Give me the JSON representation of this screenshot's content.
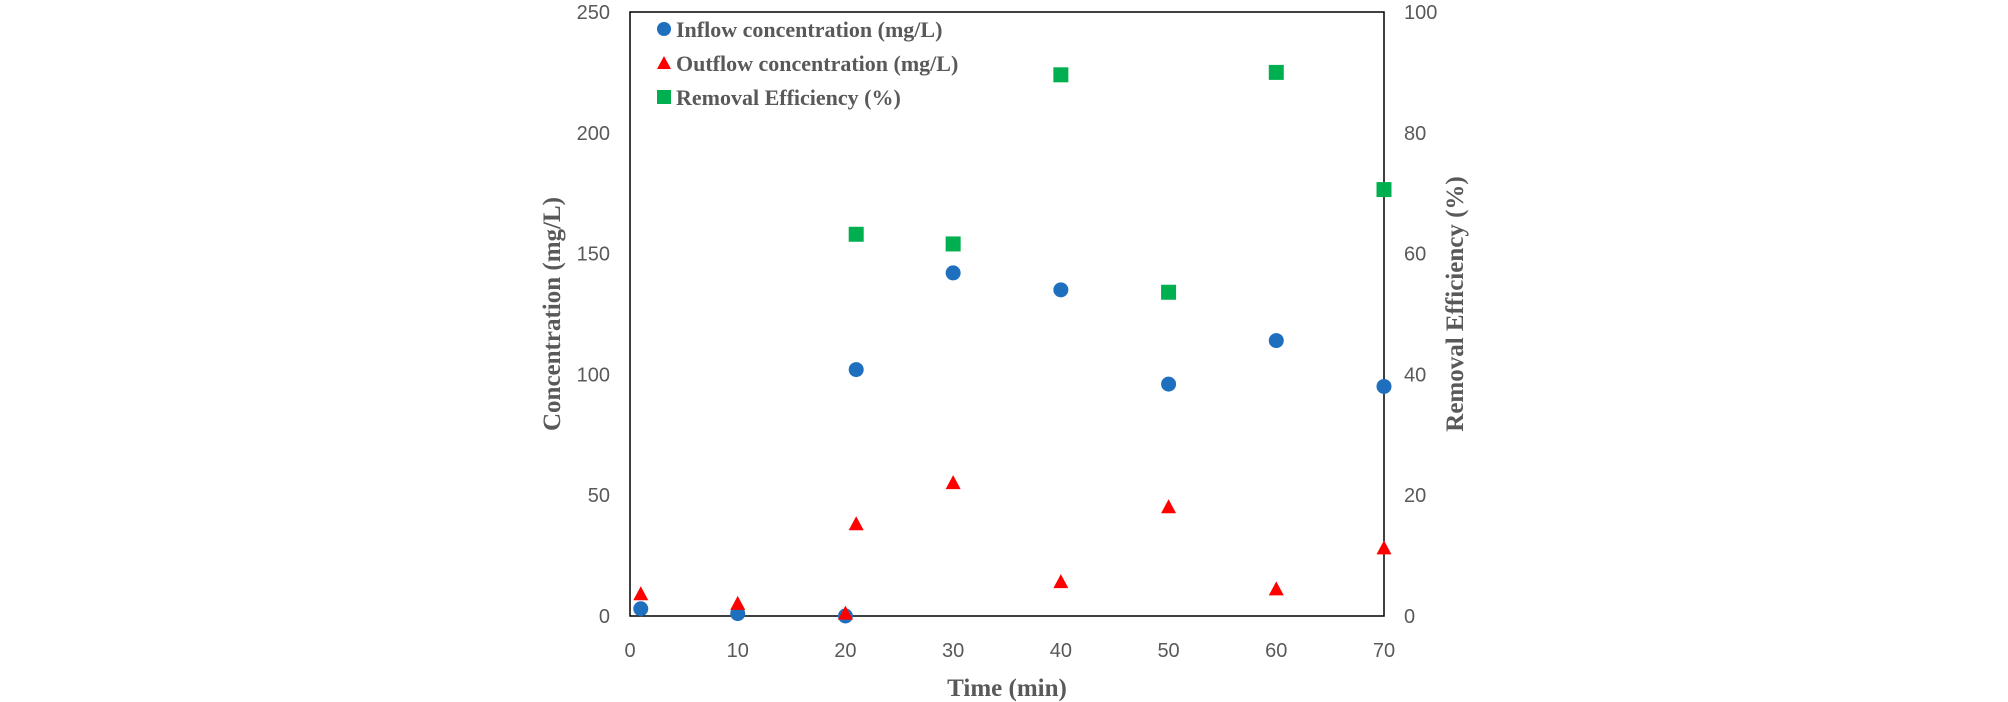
{
  "chart_data": {
    "type": "scatter",
    "xlabel": "Time (min)",
    "ylabel": "Concentration (mg/L)",
    "y2label": "Removal Efficiency (%)",
    "xlim": [
      0,
      70
    ],
    "ylim": [
      0,
      250
    ],
    "y2lim": [
      0,
      100
    ],
    "x_ticks": [
      "0",
      "10",
      "20",
      "30",
      "40",
      "50",
      "60",
      "70"
    ],
    "y_ticks": [
      "0",
      "50",
      "100",
      "150",
      "200",
      "250"
    ],
    "y2_ticks": [
      "0",
      "20",
      "40",
      "60",
      "80",
      "100"
    ],
    "grid": false,
    "legend_position": "top-left",
    "series": [
      {
        "name": "Inflow concentration (mg/L)",
        "axis": "left",
        "marker": "circle",
        "color": "#1F6FBF",
        "x": [
          1,
          10,
          20,
          21,
          30,
          40,
          50,
          60,
          70
        ],
        "y": [
          3,
          1,
          0,
          102,
          142,
          135,
          96,
          114,
          95
        ]
      },
      {
        "name": "Outflow concentration (mg/L)",
        "axis": "left",
        "marker": "triangle",
        "color": "#FF0000",
        "x": [
          1,
          10,
          20,
          21,
          30,
          40,
          50,
          60,
          70
        ],
        "y": [
          9,
          5,
          1,
          38,
          55,
          14,
          45,
          11,
          28
        ]
      },
      {
        "name": "Removal Efficiency (%)",
        "axis": "right",
        "marker": "square",
        "color": "#00B050",
        "x": [
          21,
          30,
          40,
          50,
          60,
          70
        ],
        "y": [
          63.2,
          61.6,
          89.6,
          53.6,
          90.0,
          70.6
        ]
      }
    ]
  }
}
